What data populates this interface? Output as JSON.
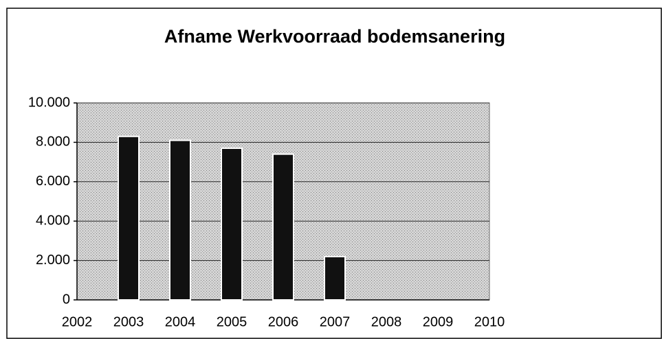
{
  "chart_data": {
    "type": "bar",
    "title": "Afname Werkvoorraad bodemsanering",
    "categories": [
      "2002",
      "2003",
      "2004",
      "2005",
      "2006",
      "2007",
      "2008",
      "2009",
      "2010"
    ],
    "values": [
      null,
      8300,
      8100,
      7700,
      7400,
      2200,
      null,
      null,
      null
    ],
    "color": "#111111",
    "ylim": [
      0,
      10000
    ],
    "yticks": [
      0,
      {
        "value": 2000,
        "label": "2.000"
      },
      {
        "value": 4000,
        "label": "4.000"
      },
      {
        "value": 6000,
        "label": "6.000"
      },
      {
        "value": 8000,
        "label": "8.000"
      },
      {
        "value": 10000,
        "label": "10.000"
      }
    ],
    "grid": true
  }
}
